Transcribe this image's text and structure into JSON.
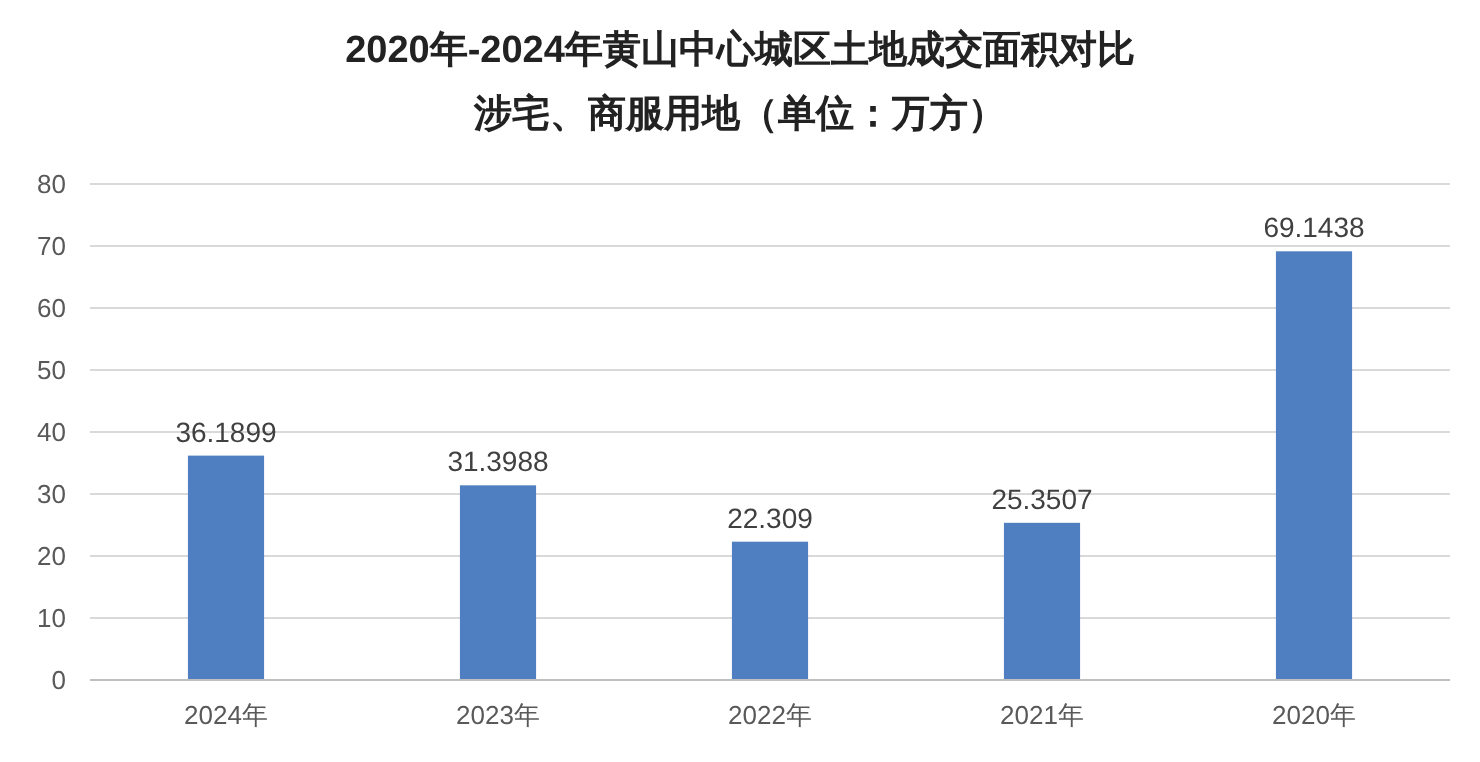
{
  "chart_data": {
    "type": "bar",
    "title": "2020年-2024年黄山中心城区土地成交面积对比",
    "subtitle": "涉宅、商服用地（单位：万方）",
    "categories": [
      "2024年",
      "2023年",
      "2022年",
      "2021年",
      "2020年"
    ],
    "values": [
      36.1899,
      31.3988,
      22.309,
      25.3507,
      69.1438
    ],
    "color": "#4f7fc0",
    "ylim": [
      0,
      80
    ],
    "yticks": [
      0,
      10,
      20,
      30,
      40,
      50,
      60,
      70,
      80
    ],
    "grid": "y",
    "data_labels": true
  }
}
